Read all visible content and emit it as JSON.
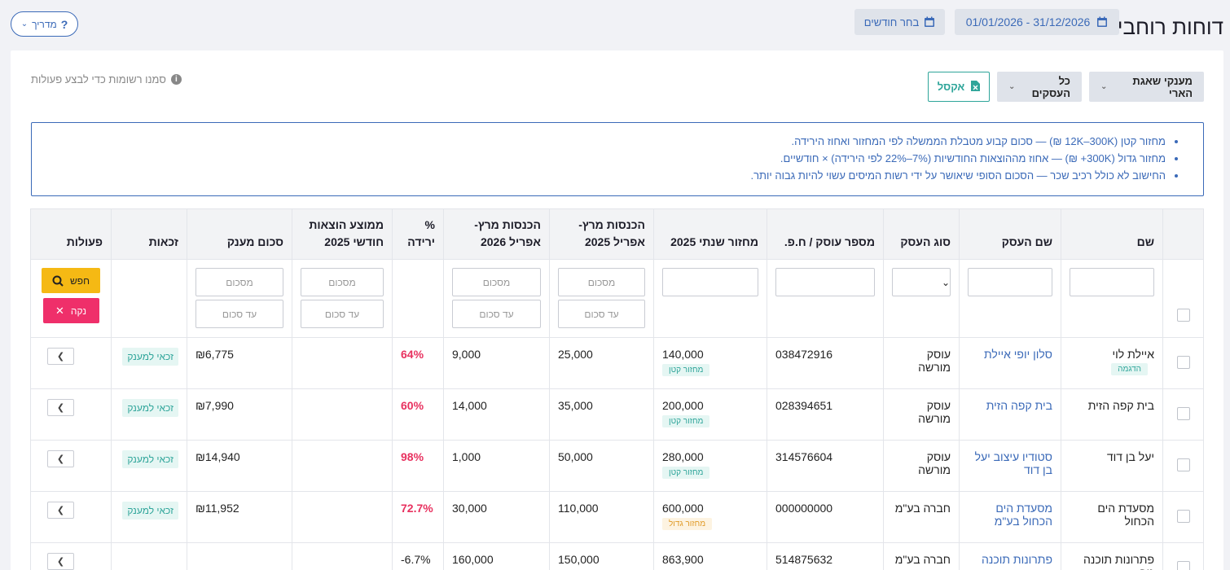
{
  "header": {
    "title": "דוחות רוחביים",
    "date_range": "01/01/2026 - 31/12/2026",
    "pick_months": "בחר חודשים",
    "guide": "מדריך"
  },
  "toolbar": {
    "grant_filter": "מענקי שאגת הארי",
    "all_businesses": "כל העסקים",
    "excel": "אקסל",
    "hint": "סמנו רשומות כדי לבצע פעולות"
  },
  "notes": [
    "מחזור קטן (12K–300K ₪) — סכום קבוע מטבלת הממשלה לפי המחזור ואחוז הירידה.",
    "מחזור גדול (300K+ ₪) — אחוז מההוצאות החודשיות (7%–22% לפי הירידה) × חודשיים.",
    "החישוב לא כולל רכיב שכר — הסכום הסופי שיאושר על ידי רשות המיסים עשוי להיות גבוה יותר."
  ],
  "columns": {
    "name": "שם",
    "business_name": "שם העסק",
    "business_type": "סוג העסק",
    "id_number": "מספר עוסק / ח.פ.",
    "annual_turnover": "מחזור שנתי 2025",
    "income_2025_l1": "הכנסות מרץ-",
    "income_2025_l2": "אפריל 2025",
    "income_2026_l1": "הכנסות מרץ-",
    "income_2026_l2": "אפריל 2026",
    "drop_l1": "%",
    "drop_l2": "ירידה",
    "expenses_l1": "ממוצע הוצאות",
    "expenses_l2": "חודשי 2025",
    "grant_amount": "סכום מענק",
    "eligibility": "זכאות",
    "actions": "פעולות"
  },
  "filters": {
    "amount_placeholder": "מסכום",
    "to_amount_placeholder": "עד סכום",
    "search": "חפש",
    "clear": "נקה"
  },
  "rows": [
    {
      "name": "איילת לוי",
      "demo": "הדגמה",
      "business": "סלון יופי איילת",
      "type": "עוסק מורשה",
      "id": "038472916",
      "turnover": "140,000",
      "size": "מחזור קטן",
      "inc25": "25,000",
      "inc26": "9,000",
      "drop": "64%",
      "expenses": "",
      "grant": "₪6,775",
      "elig": "זכאי למענק"
    },
    {
      "name": "בית קפה הזית",
      "business": "בית קפה הזית",
      "type": "עוסק מורשה",
      "id": "028394651",
      "turnover": "200,000",
      "size": "מחזור קטן",
      "inc25": "35,000",
      "inc26": "14,000",
      "drop": "60%",
      "expenses": "",
      "grant": "₪7,990",
      "elig": "זכאי למענק"
    },
    {
      "name": "יעל בן דוד",
      "business_l1": "סטודיו עיצוב יעל",
      "business_l2": "בן דוד",
      "type": "עוסק מורשה",
      "id": "314576604",
      "turnover": "280,000",
      "size": "מחזור קטן",
      "inc25": "50,000",
      "inc26": "1,000",
      "drop": "98%",
      "expenses": "",
      "grant": "₪14,940",
      "elig": "זכאי למענק"
    },
    {
      "name": "מסעדת הים הכחול",
      "business_l1": "מסעדת הים",
      "business_l2": "הכחול בע\"מ",
      "type": "חברה בע\"מ",
      "id": "000000000",
      "turnover": "600,000",
      "size": "מחזור גדול",
      "inc25": "110,000",
      "inc26": "30,000",
      "drop": "72.7%",
      "expenses": "",
      "grant": "₪11,952",
      "elig": "זכאי למענק"
    },
    {
      "name": "פתרונות תוכנה גיב",
      "business": "פתרונות תוכנה",
      "type": "חברה בע\"מ",
      "id": "514875632",
      "turnover": "863,900",
      "inc25": "150,000",
      "inc26": "160,000",
      "drop": "-6.7%"
    }
  ]
}
